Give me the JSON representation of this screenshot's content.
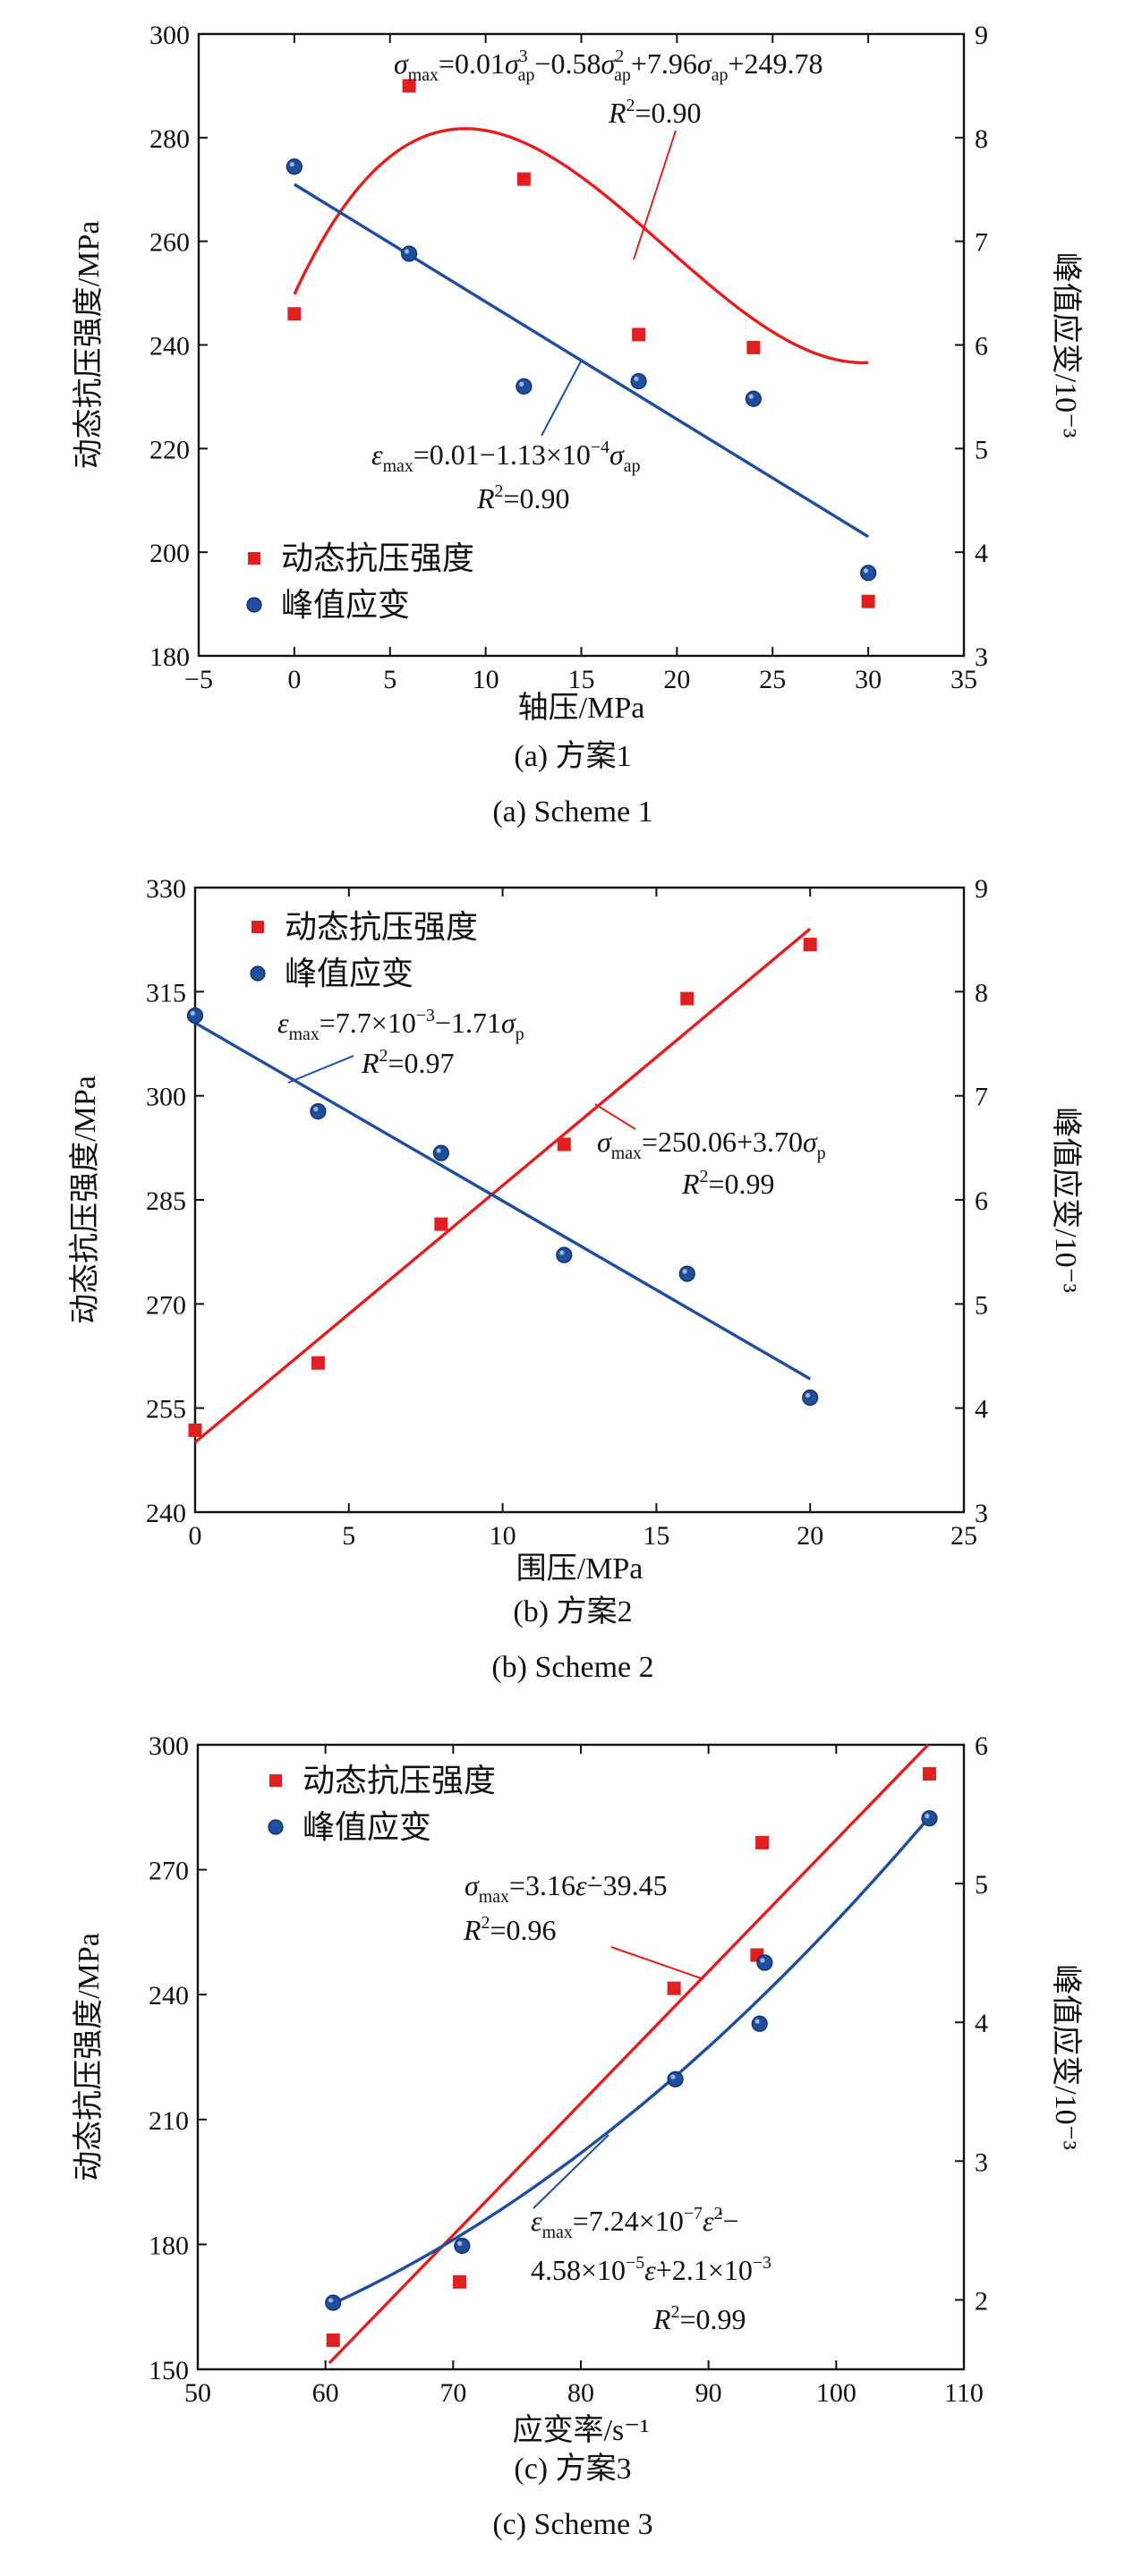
{
  "figure": {
    "panels": [
      {
        "caption_cn": "(a) 方案1",
        "caption_en": "(a) Scheme 1"
      },
      {
        "caption_cn": "(b) 方案2",
        "caption_en": "(b) Scheme 2"
      },
      {
        "caption_cn": "(c) 方案3",
        "caption_en": "(c) Scheme 3"
      }
    ]
  },
  "colors": {
    "strength": "#e02020",
    "strain": "#1f4e9c",
    "axis": "#111111"
  },
  "chart_data": [
    {
      "type": "scatter",
      "xlabel": "轴压/MPa",
      "ylabel": "动态抗压强度/MPa",
      "y2label": "峰值应变/10⁻³",
      "xlim": [
        -5,
        35
      ],
      "xticks": [
        -5,
        0,
        5,
        10,
        15,
        20,
        25,
        30,
        35
      ],
      "ylim": [
        180,
        300
      ],
      "yticks": [
        180,
        200,
        220,
        240,
        260,
        280,
        300
      ],
      "y2lim": [
        3,
        9
      ],
      "y2ticks": [
        3,
        4,
        5,
        6,
        7,
        8,
        9
      ],
      "grid": false,
      "legend_position": "bottom-left",
      "series": [
        {
          "name": "动态抗压强度",
          "axis": "left",
          "marker": "square",
          "color": "#e02020",
          "x": [
            0,
            6,
            12,
            18,
            24,
            30
          ],
          "y": [
            246,
            290,
            272,
            242,
            239.5,
            190.5
          ],
          "fit": {
            "kind": "poly3",
            "x_range": [
              0,
              30
            ],
            "coef": [
              249.78,
              7.96,
              -0.58,
              0.01
            ]
          }
        },
        {
          "name": "峰值应变",
          "axis": "right",
          "marker": "circle",
          "color": "#1f4e9c",
          "x": [
            0,
            6,
            12,
            18,
            24,
            30
          ],
          "y": [
            7.72,
            6.88,
            5.6,
            5.65,
            5.48,
            3.8
          ],
          "fit": {
            "kind": "linear",
            "x_range": [
              0,
              30
            ],
            "y_at_range": [
              7.55,
              4.15
            ]
          }
        }
      ],
      "annotations": [
        {
          "series": 0,
          "line1": [
            {
              "t": "σ",
              "i": true
            },
            {
              "t": "max",
              "sub": true
            },
            {
              "t": "=0.01"
            },
            {
              "t": "σ",
              "i": true
            },
            {
              "t": "3",
              "sup": true,
              "attach": "ap"
            },
            {
              "t": "−0.58"
            },
            {
              "t": "σ",
              "i": true
            },
            {
              "t": "2",
              "sup": true,
              "attach": "ap"
            },
            {
              "t": "+7.96"
            },
            {
              "t": "σ",
              "i": true
            },
            {
              "t": "ap",
              "sub": true
            },
            {
              "t": "+249.78"
            }
          ],
          "line2": [
            {
              "t": "R",
              "i": true
            },
            {
              "t": "2",
              "sup": true
            },
            {
              "t": "=0.90"
            }
          ]
        },
        {
          "series": 1,
          "line1": [
            {
              "t": "ε",
              "i": true
            },
            {
              "t": "max",
              "sub": true
            },
            {
              "t": "=0.01−1.13×10"
            },
            {
              "t": "−4",
              "sup": true
            },
            {
              "t": "σ",
              "i": true
            },
            {
              "t": "ap",
              "sub": true
            }
          ],
          "line2": [
            {
              "t": "R",
              "i": true
            },
            {
              "t": "2",
              "sup": true
            },
            {
              "t": "=0.90"
            }
          ]
        }
      ]
    },
    {
      "type": "scatter",
      "xlabel": "围压/MPa",
      "ylabel": "动态抗压强度/MPa",
      "y2label": "峰值应变/10⁻³",
      "xlim": [
        0,
        25
      ],
      "xticks": [
        0,
        5,
        10,
        15,
        20,
        25
      ],
      "ylim": [
        240,
        330
      ],
      "yticks": [
        240,
        255,
        270,
        285,
        300,
        315,
        330
      ],
      "y2lim": [
        3,
        9
      ],
      "y2ticks": [
        3,
        4,
        5,
        6,
        7,
        8,
        9
      ],
      "grid": false,
      "legend_position": "top-left",
      "series": [
        {
          "name": "动态抗压强度",
          "axis": "left",
          "marker": "square",
          "color": "#e02020",
          "x": [
            0,
            4,
            8,
            12,
            16,
            20
          ],
          "y": [
            251.8,
            261.5,
            281.5,
            293,
            314,
            321.8
          ],
          "fit": {
            "kind": "linear",
            "x_range": [
              0,
              20
            ],
            "y_at_range": [
              250.06,
              324.06
            ]
          }
        },
        {
          "name": "峰值应变",
          "axis": "right",
          "marker": "circle",
          "color": "#1f4e9c",
          "x": [
            0,
            4,
            8,
            12,
            16,
            20
          ],
          "y": [
            7.77,
            6.85,
            6.45,
            5.47,
            5.29,
            4.1
          ],
          "fit": {
            "kind": "linear",
            "x_range": [
              0,
              20
            ],
            "y_at_range": [
              7.7,
              4.28
            ]
          }
        }
      ],
      "annotations": [
        {
          "series": 1,
          "line1": [
            {
              "t": "ε",
              "i": true
            },
            {
              "t": "max",
              "sub": true
            },
            {
              "t": "=7.7×10"
            },
            {
              "t": "−3",
              "sup": true
            },
            {
              "t": "−1.71"
            },
            {
              "t": "σ",
              "i": true
            },
            {
              "t": "p",
              "sub": true
            }
          ],
          "line2": [
            {
              "t": "R",
              "i": true
            },
            {
              "t": "2",
              "sup": true
            },
            {
              "t": "=0.97"
            }
          ]
        },
        {
          "series": 0,
          "line1": [
            {
              "t": "σ",
              "i": true
            },
            {
              "t": "max",
              "sub": true
            },
            {
              "t": "=250.06+3.70"
            },
            {
              "t": "σ",
              "i": true
            },
            {
              "t": "p",
              "sub": true
            }
          ],
          "line2": [
            {
              "t": "R",
              "i": true
            },
            {
              "t": "2",
              "sup": true
            },
            {
              "t": "=0.99"
            }
          ]
        }
      ]
    },
    {
      "type": "scatter",
      "xlabel": "应变率/s⁻¹",
      "ylabel": "动态抗压强度/MPa",
      "y2label": "峰值应变/10⁻³",
      "xlim": [
        50,
        110
      ],
      "xticks": [
        50,
        60,
        70,
        80,
        90,
        100,
        110
      ],
      "ylim": [
        150,
        300
      ],
      "yticks": [
        150,
        180,
        210,
        240,
        270,
        300
      ],
      "y2lim": [
        1.5,
        6
      ],
      "y2ticks": [
        2,
        3,
        4,
        5,
        6
      ],
      "grid": false,
      "legend_position": "top-left",
      "series": [
        {
          "name": "动态抗压强度",
          "axis": "left",
          "marker": "square",
          "color": "#e02020",
          "x": [
            60.6,
            70.5,
            87.3,
            93.8,
            94.2,
            107.3
          ],
          "y": [
            157,
            171,
            241.5,
            249.5,
            276.5,
            293
          ],
          "fit": {
            "kind": "linear",
            "x_range": [
              60.3,
              107.2
            ],
            "y_at_range": [
              151.5,
              300
            ]
          }
        },
        {
          "name": "峰值应变",
          "axis": "right",
          "marker": "circle",
          "color": "#1f4e9c",
          "x": [
            60.6,
            70.7,
            87.4,
            94.0,
            94.4,
            107.3
          ],
          "y": [
            1.98,
            2.39,
            3.59,
            3.99,
            4.43,
            5.47
          ],
          "fit": {
            "kind": "poly2",
            "x_range": [
              60.5,
              107.3
            ],
            "points": [
              [
                60.5,
                1.97
              ],
              [
                83.9,
                3.34
              ],
              [
                107.3,
                5.48
              ]
            ]
          }
        }
      ],
      "annotations": [
        {
          "series": 0,
          "line1": [
            {
              "t": "σ",
              "i": true
            },
            {
              "t": "max",
              "sub": true
            },
            {
              "t": "=3.16"
            },
            {
              "t": "ε̇",
              "i": true
            },
            {
              "t": "−39.45"
            }
          ],
          "line2": [
            {
              "t": "R",
              "i": true
            },
            {
              "t": "2",
              "sup": true
            },
            {
              "t": "=0.96"
            }
          ]
        },
        {
          "series": 1,
          "line1": [
            {
              "t": "ε",
              "i": true
            },
            {
              "t": "max",
              "sub": true
            },
            {
              "t": "=7.24×10"
            },
            {
              "t": "−7",
              "sup": true
            },
            {
              "t": "ε̇",
              "i": true
            },
            {
              "t": "2",
              "sup": true
            },
            {
              "t": "−"
            }
          ],
          "line2": [
            {
              "t": "4.58×10"
            },
            {
              "t": "−5",
              "sup": true
            },
            {
              "t": "ε̇",
              "i": true
            },
            {
              "t": "+2.1×10"
            },
            {
              "t": "−3",
              "sup": true
            }
          ],
          "line3": [
            {
              "t": "R",
              "i": true
            },
            {
              "t": "2",
              "sup": true
            },
            {
              "t": "=0.99"
            }
          ]
        }
      ]
    }
  ]
}
